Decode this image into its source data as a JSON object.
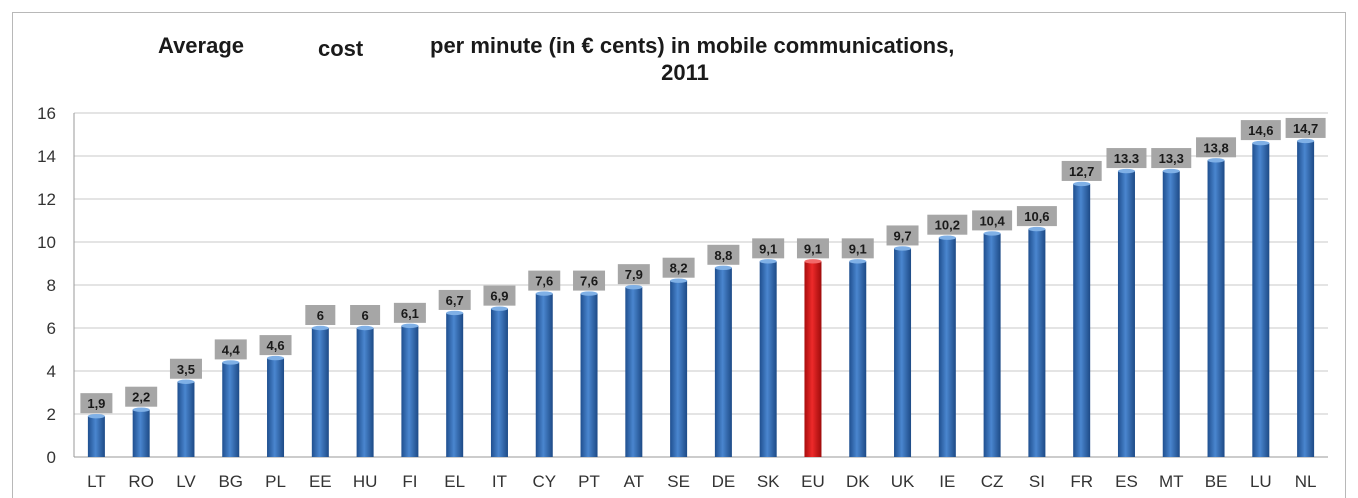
{
  "chart_data": {
    "type": "bar",
    "title_parts": [
      "Average",
      "cost",
      "per minute (in € cents) in mobile communications,"
    ],
    "title_line2": "2011",
    "categories": [
      "LT",
      "RO",
      "LV",
      "BG",
      "PL",
      "EE",
      "HU",
      "FI",
      "EL",
      "IT",
      "CY",
      "PT",
      "AT",
      "SE",
      "DE",
      "SK",
      "EU",
      "DK",
      "UK",
      "IE",
      "CZ",
      "SI",
      "FR",
      "ES",
      "MT",
      "BE",
      "LU",
      "NL"
    ],
    "values": [
      1.9,
      2.2,
      3.5,
      4.4,
      4.6,
      6,
      6,
      6.1,
      6.7,
      6.9,
      7.6,
      7.6,
      7.9,
      8.2,
      8.8,
      9.1,
      9.1,
      9.1,
      9.7,
      10.2,
      10.4,
      10.6,
      12.7,
      13.3,
      13.3,
      13.8,
      14.6,
      14.7
    ],
    "value_labels": [
      "1,9",
      "2,2",
      "3,5",
      "4,4",
      "4,6",
      "6",
      "6",
      "6,1",
      "6,7",
      "6,9",
      "7,6",
      "7,6",
      "7,9",
      "8,2",
      "8,8",
      "9,1",
      "9,1",
      "9,1",
      "9,7",
      "10,2",
      "10,4",
      "10,6",
      "12,7",
      "13.3",
      "13,3",
      "13,8",
      "14,6",
      "14,7"
    ],
    "highlight_category": "EU",
    "yticks": [
      0,
      2,
      4,
      6,
      8,
      10,
      12,
      14,
      16
    ],
    "ylim": [
      0,
      16
    ],
    "xlabel": "",
    "ylabel": "",
    "grid": true,
    "legend": false,
    "colors": {
      "bar": "#2e65ab",
      "bar_highlight": "#d21414",
      "label_box": "#a6a6a6",
      "grid": "#c8c8c8"
    }
  }
}
